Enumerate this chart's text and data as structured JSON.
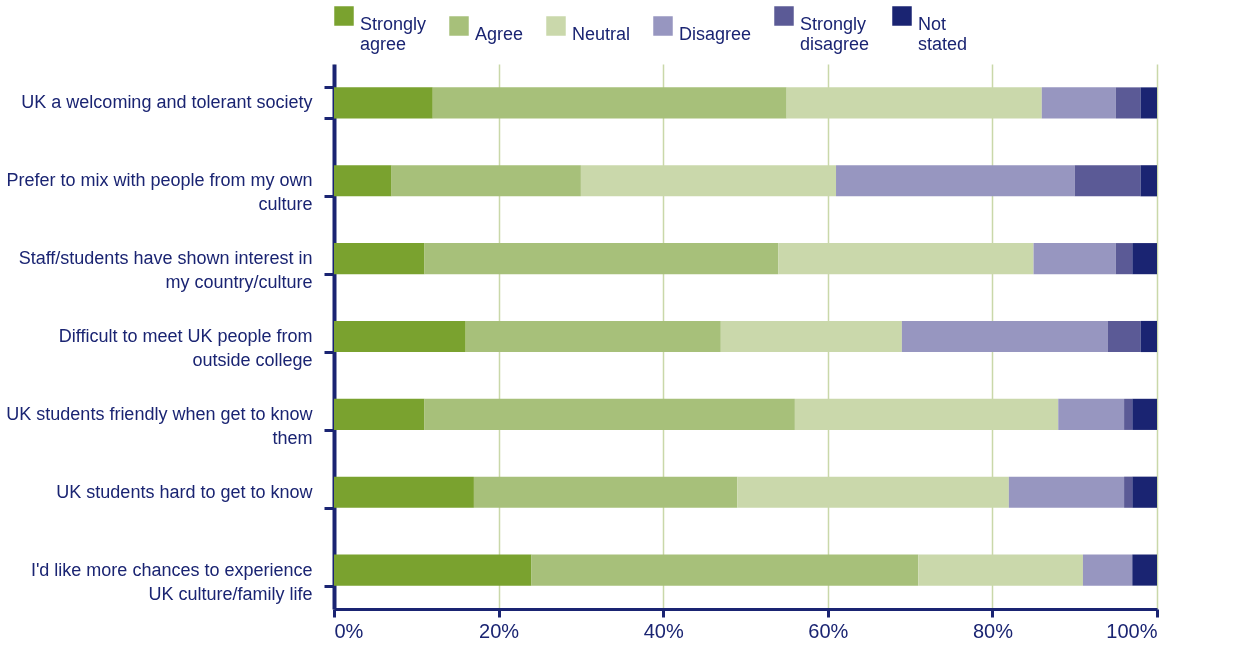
{
  "chart_data": {
    "type": "bar",
    "orientation": "horizontal",
    "stacked": true,
    "categories": [
      "UK a welcoming and tolerant society",
      "Prefer to mix with people from my own culture",
      "Staff/students have shown interest in my country/culture",
      "Difficult to meet UK people from outside college",
      "UK students friendly when get to know them",
      "UK students hard to get to know",
      "I'd like more chances to experience UK culture/family life"
    ],
    "series": [
      {
        "name": "Strongly agree",
        "color": "#7aa22f",
        "values": [
          12,
          7,
          11,
          16,
          11,
          17,
          24
        ]
      },
      {
        "name": "Agree",
        "color": "#a7c07a",
        "values": [
          43,
          23,
          43,
          31,
          45,
          32,
          47
        ]
      },
      {
        "name": "Neutral",
        "color": "#cad8ab",
        "values": [
          31,
          31,
          31,
          22,
          32,
          33,
          20
        ]
      },
      {
        "name": "Disagree",
        "color": "#9796c0",
        "values": [
          9,
          29,
          10,
          25,
          8,
          14,
          6
        ]
      },
      {
        "name": "Strongly disagree",
        "color": "#5b5a96",
        "values": [
          3,
          8,
          2,
          4,
          1,
          1,
          0
        ]
      },
      {
        "name": "Not stated",
        "color": "#1a2472",
        "values": [
          2,
          2,
          3,
          2,
          3,
          3,
          3
        ]
      }
    ],
    "xlim": [
      0,
      100
    ],
    "xticks": [
      {
        "value": 0,
        "label": "0%"
      },
      {
        "value": 20,
        "label": "20%"
      },
      {
        "value": 40,
        "label": "40%"
      },
      {
        "value": 60,
        "label": "60%"
      },
      {
        "value": 80,
        "label": "80%"
      },
      {
        "value": 100,
        "label": "100%"
      }
    ],
    "grid": "x",
    "legend": "top"
  }
}
